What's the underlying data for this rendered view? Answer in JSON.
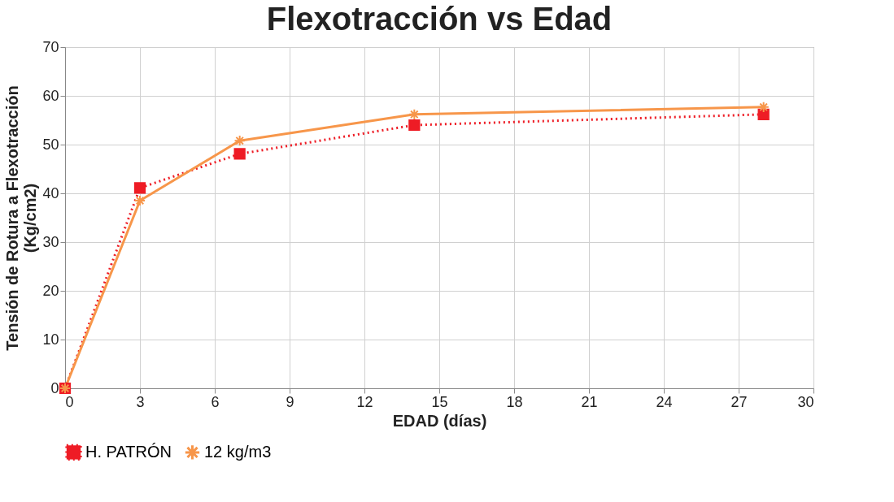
{
  "chart_data": {
    "type": "line",
    "title": "Flexotracción vs Edad",
    "xlabel": "EDAD (días)",
    "ylabel": "Tensión de Rotura a Flexotracción\n(Kg/cm2)",
    "x": [
      0,
      3,
      7,
      14,
      28
    ],
    "series": [
      {
        "name": "H. PATRÓN",
        "color": "#ee1c25",
        "values": [
          0,
          41.1,
          48.1,
          54.0,
          56.2
        ],
        "marker": "square",
        "line_style": "dotted"
      },
      {
        "name": "12 kg/m3",
        "color": "#f7964a",
        "values": [
          0,
          38.5,
          50.8,
          56.2,
          57.7
        ],
        "marker": "cross",
        "line_style": "solid"
      }
    ],
    "xlim": [
      0,
      30
    ],
    "xticks": [
      0,
      3,
      6,
      9,
      12,
      15,
      18,
      21,
      24,
      27,
      30
    ],
    "ylim": [
      0,
      70
    ],
    "yticks": [
      0,
      10,
      20,
      30,
      40,
      50,
      60,
      70
    ],
    "grid": true,
    "legend": "bottom"
  }
}
